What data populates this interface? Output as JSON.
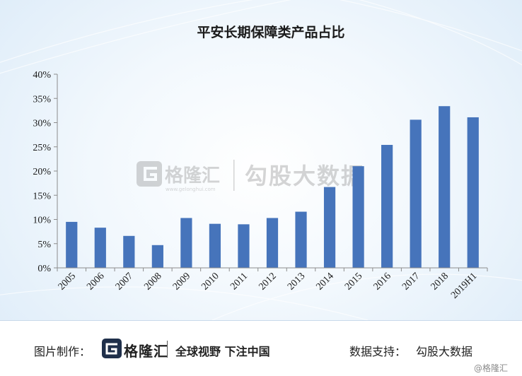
{
  "chart_data": {
    "type": "bar",
    "title": "平安长期保障类产品占比",
    "xlabel": "",
    "ylabel": "",
    "categories": [
      "2005",
      "2006",
      "2007",
      "2008",
      "2009",
      "2010",
      "2011",
      "2012",
      "2013",
      "2014",
      "2015",
      "2016",
      "2017",
      "2018",
      "2019H1"
    ],
    "values": [
      9.5,
      8.3,
      6.6,
      4.7,
      10.3,
      9.1,
      9.0,
      10.3,
      11.6,
      16.7,
      21.0,
      25.4,
      30.6,
      33.4,
      31.1
    ],
    "ylim": [
      0,
      40
    ],
    "yticks": [
      0,
      5,
      10,
      15,
      20,
      25,
      30,
      35,
      40
    ],
    "ytick_labels": [
      "0%",
      "5%",
      "10%",
      "15%",
      "20%",
      "25%",
      "30%",
      "35%",
      "40%"
    ],
    "grid": false,
    "legend": "none",
    "bar_color": "#4674bb"
  },
  "watermark": {
    "brand": "格隆汇",
    "brand_url": "www.gelonghui.com",
    "partner": "勾股大数据"
  },
  "footer": {
    "credit_label": "图片制作：",
    "brand": "格隆汇",
    "slogan": "全球视野 下注中国",
    "support_label": "数据支持：",
    "support_value": "勾股大数据",
    "corner_mark": "@格隆汇"
  }
}
